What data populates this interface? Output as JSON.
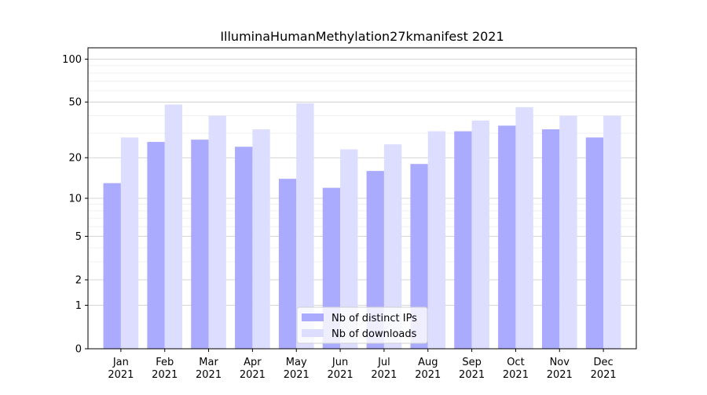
{
  "chart_data": {
    "type": "bar",
    "title": "IlluminaHumanMethylation27kmanifest 2021",
    "xlabel": "",
    "ylabel": "",
    "y_scale": "log1p",
    "ylim": [
      0,
      120
    ],
    "yticks": [
      0,
      1,
      2,
      5,
      10,
      20,
      50,
      100
    ],
    "categories": [
      "Jan\n2021",
      "Feb\n2021",
      "Mar\n2021",
      "Apr\n2021",
      "May\n2021",
      "Jun\n2021",
      "Jul\n2021",
      "Aug\n2021",
      "Sep\n2021",
      "Oct\n2021",
      "Nov\n2021",
      "Dec\n2021"
    ],
    "series": [
      {
        "name": "Nb of distinct IPs",
        "color": "#aaaaff",
        "values": [
          13,
          26,
          27,
          24,
          14,
          12,
          16,
          18,
          31,
          34,
          32,
          28
        ]
      },
      {
        "name": "Nb of downloads",
        "color": "#ddddff",
        "values": [
          28,
          48,
          40,
          32,
          49,
          23,
          25,
          31,
          37,
          46,
          40,
          40
        ]
      }
    ],
    "grid": true,
    "legend_position": "lower-center"
  }
}
